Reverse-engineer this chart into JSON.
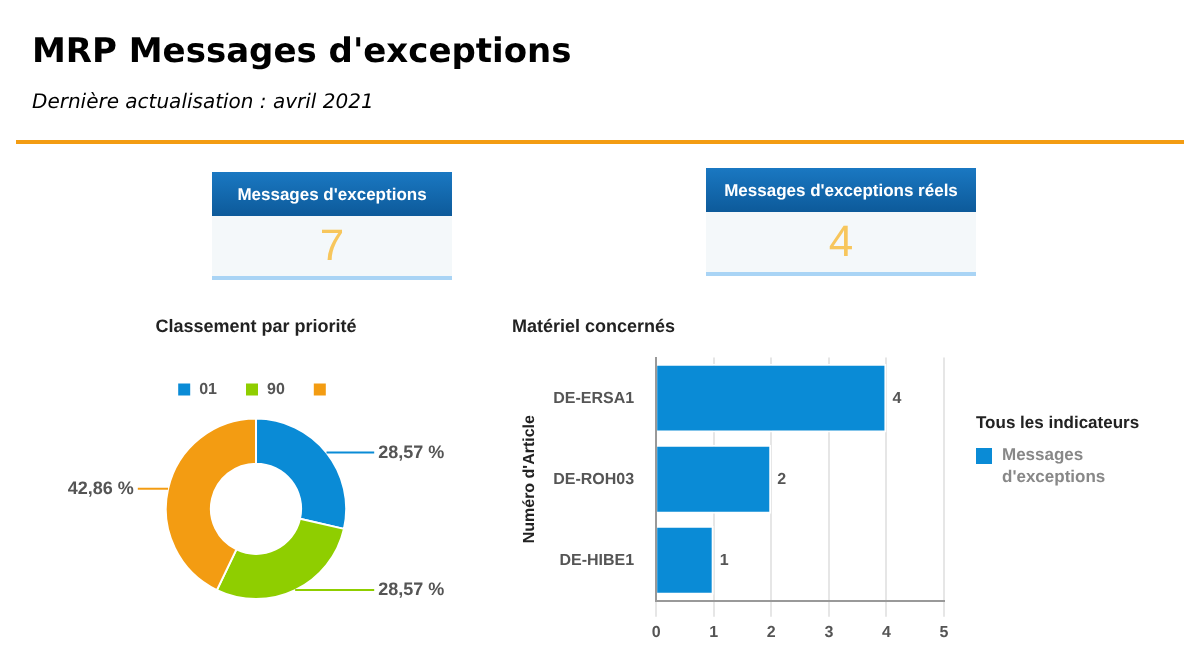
{
  "chart_data": [
    {
      "type": "other",
      "title": "MRP Messages d'exceptions",
      "subtitle": "Dernière actualisation : avril 2021"
    },
    {
      "type": "other",
      "title": "Messages d'exceptions",
      "values": [
        7
      ],
      "value_labels": [
        "7"
      ]
    },
    {
      "type": "other",
      "title": "Messages d'exceptions réels",
      "values": [
        4
      ],
      "value_labels": [
        "4"
      ]
    },
    {
      "type": "donut",
      "title": "Classement par priorité",
      "categories": [
        "01",
        "90",
        null
      ],
      "values": [
        28.57,
        28.57,
        42.86
      ],
      "colors": [
        "#0a8bd6",
        "#8fce00",
        "#f39c12"
      ],
      "value_labels": [
        "28,57 %",
        "28,57 %",
        "42,86 %"
      ],
      "legend": "top"
    },
    {
      "type": "bar",
      "orientation": "horizontal",
      "title": "Matériel concernés",
      "ylabel": "Numéro d'Article",
      "legend_title": "Tous les indicateurs",
      "categories": [
        "DE-ERSA1",
        "DE-ROH03",
        "DE-HIBE1"
      ],
      "series": [
        {
          "name": "Messages d'exceptions",
          "color": "#0a8bd6",
          "values": [
            4,
            2,
            1
          ]
        }
      ],
      "xlim": [
        0,
        5
      ],
      "xticks": [
        0,
        1,
        2,
        3,
        4,
        5
      ],
      "grid": "x",
      "legend": "right",
      "data_labels": true
    }
  ]
}
